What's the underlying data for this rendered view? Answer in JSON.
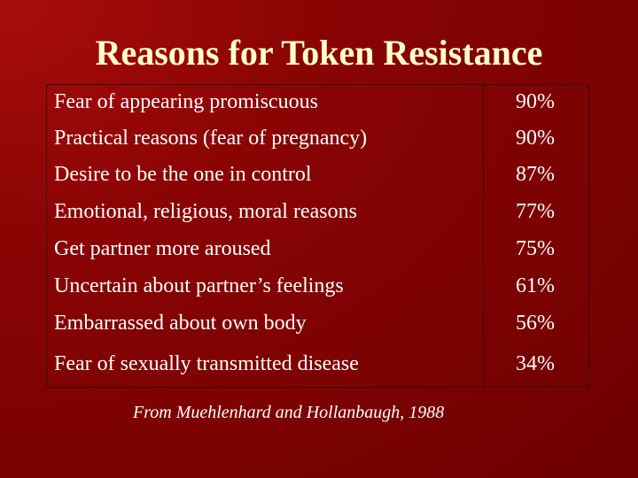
{
  "header": {
    "title": "Reasons for Token Resistance"
  },
  "table": {
    "rows": [
      [
        "Fear of appearing promiscuous",
        "90%"
      ],
      [
        "Practical reasons (fear of pregnancy)",
        "90%"
      ],
      [
        "Desire to be the one in control",
        "87%"
      ],
      [
        "Emotional, religious, moral reasons",
        "77%"
      ],
      [
        "Get partner more aroused",
        "75%"
      ],
      [
        "Uncertain about partner’s feelings",
        "61%"
      ],
      [
        "Embarrassed about own body",
        "56%"
      ],
      [
        "Fear of sexually transmitted disease",
        "34%"
      ]
    ]
  },
  "footnote": "From Muehlenhard and Hollanbaugh, 1988"
}
